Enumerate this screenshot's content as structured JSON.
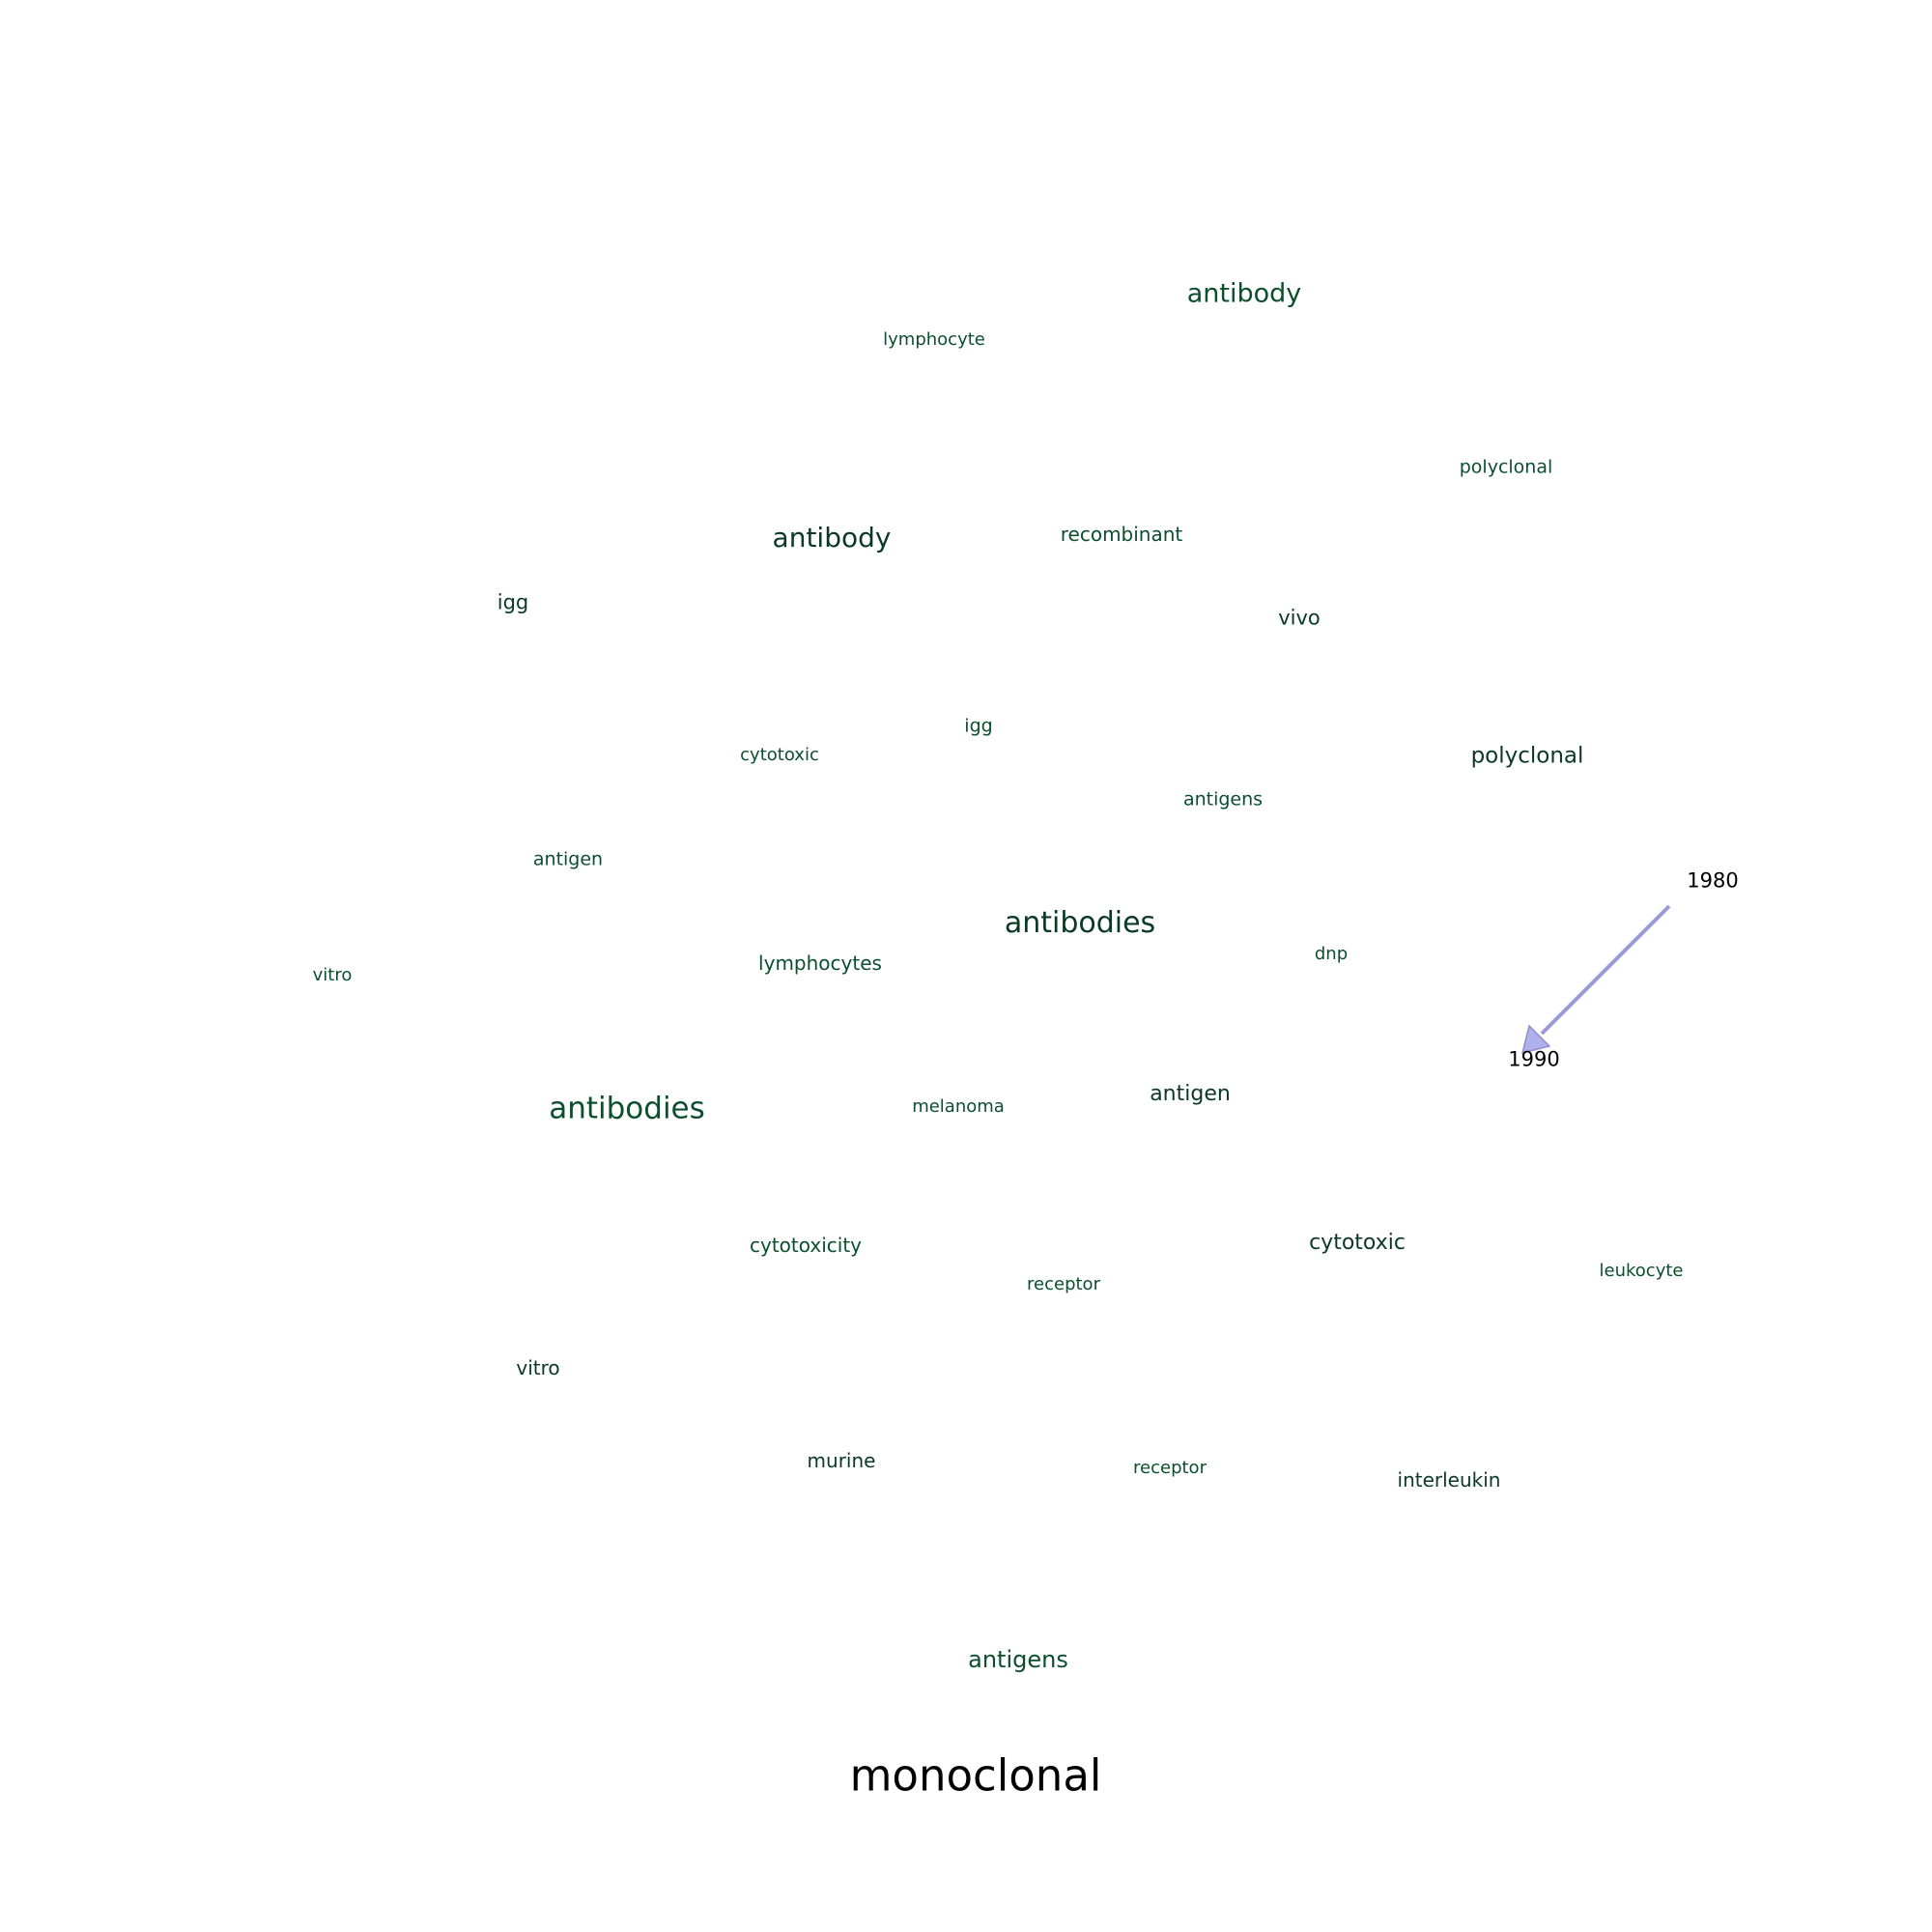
{
  "colors": {
    "term_green": "#0b4f2e",
    "term_dark": "#0a3a24",
    "query": "#000000",
    "arrow": "#a3a3e0",
    "arrow_stroke": "#8f8fd0"
  },
  "query_term": "monoclonal",
  "timeline": {
    "start_year": "1980",
    "end_year": "1990"
  },
  "terms": [
    {
      "id": "antibody-1",
      "text": "antibody"
    },
    {
      "id": "lymphocyte-1",
      "text": "lymphocyte"
    },
    {
      "id": "polyclonal-1",
      "text": "polyclonal"
    },
    {
      "id": "antibody-2",
      "text": "antibody"
    },
    {
      "id": "recombinant",
      "text": "recombinant"
    },
    {
      "id": "igg-1",
      "text": "igg"
    },
    {
      "id": "vivo",
      "text": "vivo"
    },
    {
      "id": "igg-2",
      "text": "igg"
    },
    {
      "id": "cytotoxic-1",
      "text": "cytotoxic"
    },
    {
      "id": "polyclonal-2",
      "text": "polyclonal"
    },
    {
      "id": "antigens-1",
      "text": "antigens"
    },
    {
      "id": "antigen-1",
      "text": "antigen"
    },
    {
      "id": "antibodies-1",
      "text": "antibodies"
    },
    {
      "id": "lymphocytes",
      "text": "lymphocytes"
    },
    {
      "id": "dnp",
      "text": "dnp"
    },
    {
      "id": "vitro-1",
      "text": "vitro"
    },
    {
      "id": "antibodies-2",
      "text": "antibodies"
    },
    {
      "id": "melanoma",
      "text": "melanoma"
    },
    {
      "id": "antigen-2",
      "text": "antigen"
    },
    {
      "id": "cytotoxicity",
      "text": "cytotoxicity"
    },
    {
      "id": "cytotoxic-2",
      "text": "cytotoxic"
    },
    {
      "id": "leukocyte",
      "text": "leukocyte"
    },
    {
      "id": "receptor-1",
      "text": "receptor"
    },
    {
      "id": "vitro-2",
      "text": "vitro"
    },
    {
      "id": "murine",
      "text": "murine"
    },
    {
      "id": "receptor-2",
      "text": "receptor"
    },
    {
      "id": "interleukin",
      "text": "interleukin"
    },
    {
      "id": "antigens-2",
      "text": "antigens"
    }
  ]
}
